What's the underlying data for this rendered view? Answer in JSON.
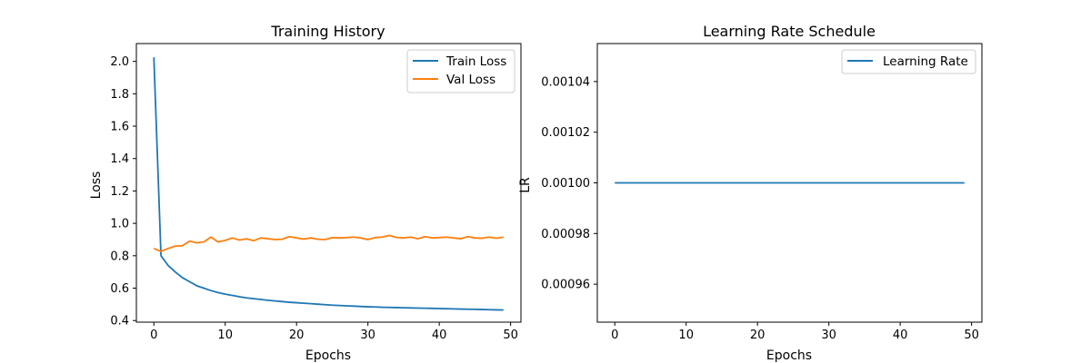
{
  "chart_data": [
    {
      "type": "line",
      "title": "Training History",
      "xlabel": "Epochs",
      "ylabel": "Loss",
      "xlim": [
        -2.45,
        51.45
      ],
      "ylim": [
        0.39,
        2.11
      ],
      "xticks": [
        "0",
        "10",
        "20",
        "30",
        "40",
        "50"
      ],
      "yticks": [
        "0.4",
        "0.6",
        "0.8",
        "1.0",
        "1.2",
        "1.4",
        "1.6",
        "1.8",
        "2.0"
      ],
      "legend_position": "top-right",
      "grid": false,
      "x": [
        0,
        1,
        2,
        3,
        4,
        5,
        6,
        7,
        8,
        9,
        10,
        11,
        12,
        13,
        14,
        15,
        16,
        17,
        18,
        19,
        20,
        21,
        22,
        23,
        24,
        25,
        26,
        27,
        28,
        29,
        30,
        31,
        32,
        33,
        34,
        35,
        36,
        37,
        38,
        39,
        40,
        41,
        42,
        43,
        44,
        45,
        46,
        47,
        48,
        49
      ],
      "series": [
        {
          "name": "Train Loss",
          "color": "#1f77b4",
          "values": [
            2.025,
            0.8,
            0.74,
            0.7,
            0.665,
            0.64,
            0.615,
            0.6,
            0.585,
            0.573,
            0.563,
            0.555,
            0.547,
            0.54,
            0.535,
            0.53,
            0.525,
            0.521,
            0.517,
            0.513,
            0.51,
            0.507,
            0.504,
            0.501,
            0.498,
            0.495,
            0.493,
            0.491,
            0.489,
            0.487,
            0.485,
            0.484,
            0.482,
            0.481,
            0.48,
            0.479,
            0.478,
            0.477,
            0.476,
            0.475,
            0.474,
            0.473,
            0.472,
            0.471,
            0.47,
            0.469,
            0.468,
            0.467,
            0.466,
            0.465
          ]
        },
        {
          "name": "Val Loss",
          "color": "#ff7f0e",
          "values": [
            0.845,
            0.827,
            0.845,
            0.86,
            0.862,
            0.89,
            0.88,
            0.885,
            0.915,
            0.885,
            0.895,
            0.91,
            0.897,
            0.905,
            0.893,
            0.91,
            0.905,
            0.9,
            0.902,
            0.918,
            0.91,
            0.903,
            0.91,
            0.902,
            0.9,
            0.912,
            0.91,
            0.912,
            0.915,
            0.91,
            0.9,
            0.912,
            0.915,
            0.925,
            0.913,
            0.91,
            0.915,
            0.905,
            0.918,
            0.91,
            0.912,
            0.915,
            0.91,
            0.905,
            0.918,
            0.91,
            0.908,
            0.915,
            0.908,
            0.915
          ]
        }
      ]
    },
    {
      "type": "line",
      "title": "Learning Rate Schedule",
      "xlabel": "Epochs",
      "ylabel": "LR",
      "xlim": [
        -2.45,
        51.45
      ],
      "ylim": [
        0.000945,
        0.001055
      ],
      "xticks": [
        "0",
        "10",
        "20",
        "30",
        "40",
        "50"
      ],
      "yticks": [
        "0.00096",
        "0.00098",
        "0.00100",
        "0.00102",
        "0.00104"
      ],
      "legend_position": "top-right",
      "grid": false,
      "x": [
        0,
        49
      ],
      "series": [
        {
          "name": "Learning Rate",
          "color": "#1f77b4",
          "values": [
            0.001,
            0.001
          ]
        }
      ]
    }
  ]
}
